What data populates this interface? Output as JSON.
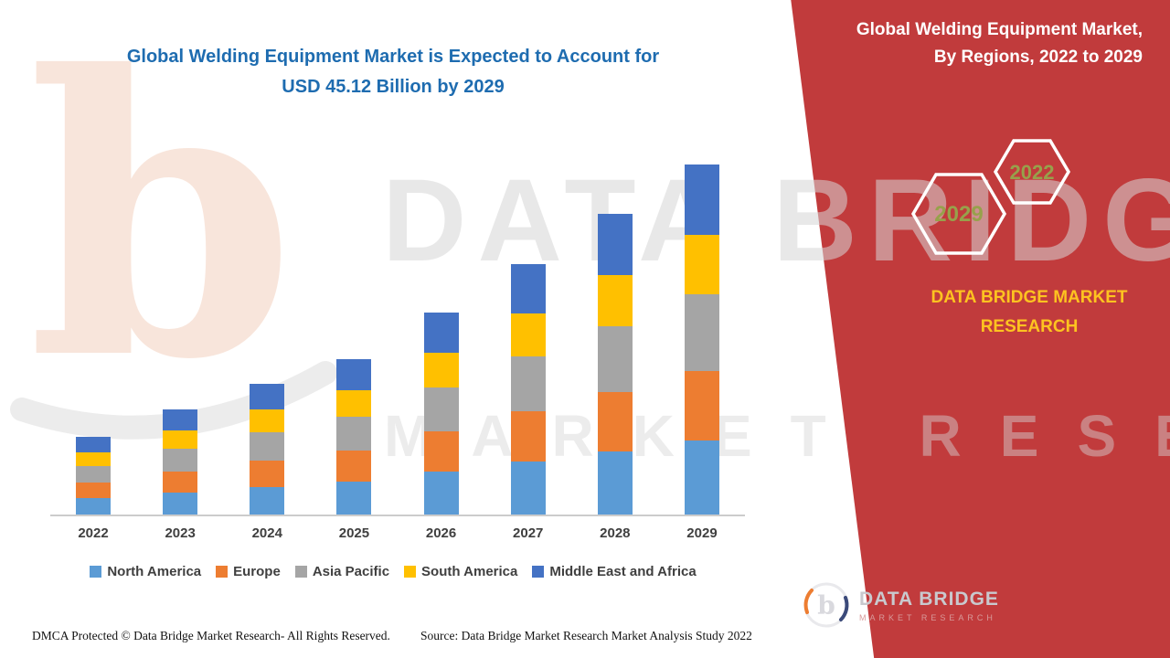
{
  "main": {
    "title_line1": "Global Welding Equipment Market is Expected to Account for",
    "title_line2": "USD 45.12 Billion by 2029"
  },
  "right_panel": {
    "title_line1": "Global Welding Equipment Market,",
    "title_line2": "By Regions, 2022 to 2029",
    "hexagon_left_year": "2029",
    "hexagon_right_year": "2022",
    "brand_line1": "DATA BRIDGE MARKET",
    "brand_line2": "RESEARCH",
    "logo_title": "DATA BRIDGE",
    "logo_subtitle": "MARKET RESEARCH",
    "accent_red": "#c13b3c",
    "accent_yellow": "#fdc320",
    "hexagon_year_color": "#97a14b"
  },
  "watermark": {
    "line1": "DATA BRIDGE",
    "line2": "MARKET RESEARCH",
    "logo_glyph": "b"
  },
  "footer": {
    "dmca": "DMCA Protected © Data Bridge Market Research- All Rights Reserved.",
    "source": "Source: Data Bridge Market Research Market Analysis Study 2022"
  },
  "chart_data": {
    "type": "bar",
    "stacked": true,
    "title": "Global Welding Equipment Market is Expected to Account for USD 45.12 Billion by 2029",
    "unit": "USD Billion",
    "categories": [
      "2022",
      "2023",
      "2024",
      "2025",
      "2026",
      "2027",
      "2028",
      "2029"
    ],
    "series": [
      {
        "name": "North America",
        "color": "#5B9BD5",
        "values": [
          2.1,
          2.8,
          3.5,
          4.2,
          5.5,
          6.8,
          8.1,
          9.5
        ]
      },
      {
        "name": "Europe",
        "color": "#ED7D31",
        "values": [
          2.0,
          2.7,
          3.4,
          4.0,
          5.2,
          6.5,
          7.7,
          9.0
        ]
      },
      {
        "name": "Asia Pacific",
        "color": "#A5A5A5",
        "values": [
          2.2,
          3.0,
          3.7,
          4.4,
          5.7,
          7.1,
          8.5,
          9.9
        ]
      },
      {
        "name": "South America",
        "color": "#FFC000",
        "values": [
          1.7,
          2.3,
          2.9,
          3.4,
          4.4,
          5.5,
          6.6,
          7.7
        ]
      },
      {
        "name": "Middle East and Africa",
        "color": "#4472C4",
        "values": [
          2.0,
          2.7,
          3.3,
          4.0,
          5.2,
          6.4,
          7.8,
          9.02
        ]
      }
    ],
    "totals_estimated": [
      10.0,
      13.5,
      16.8,
      20.0,
      26.0,
      32.3,
      38.7,
      45.12
    ],
    "ylim": [
      0,
      50
    ],
    "grid": false,
    "y_axis_visible": false,
    "x_axis_visible": true,
    "legend_position": "bottom"
  }
}
